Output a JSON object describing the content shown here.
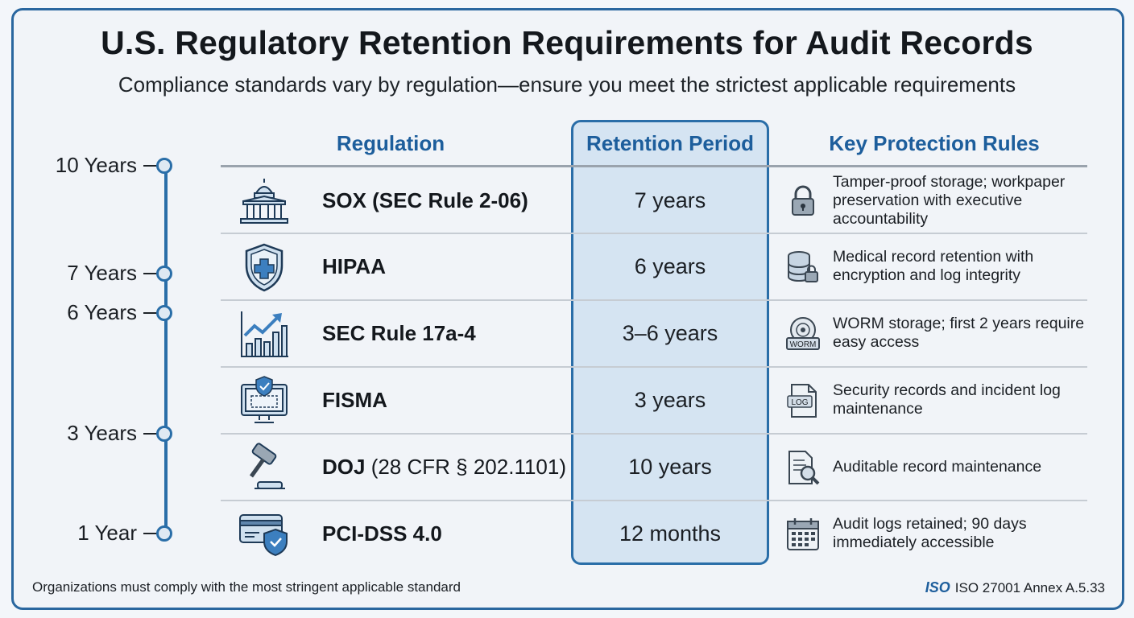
{
  "title": "U.S. Regulatory Retention Requirements for Audit Records",
  "subtitle": "Compliance standards vary by regulation—ensure you meet the strictest applicable requirements",
  "columns": {
    "regulation": "Regulation",
    "retention": "Retention Period",
    "rules": "Key Protection Rules"
  },
  "timeline": [
    {
      "label": "10 Years",
      "years": 10
    },
    {
      "label": "7 Years",
      "years": 7
    },
    {
      "label": "6 Years",
      "years": 6
    },
    {
      "label": "3 Years",
      "years": 3
    },
    {
      "label": "1 Year",
      "years": 1
    }
  ],
  "rows": [
    {
      "name": "SOX (SEC Rule 2-06)",
      "name_extra": "",
      "period": "7 years",
      "rule": "Tamper-proof storage; workpaper preservation with executive accountability",
      "icon": "capitol-building-icon",
      "rule_icon": "padlock-icon"
    },
    {
      "name": "HIPAA",
      "name_extra": "",
      "period": "6 years",
      "rule": "Medical record retention with encryption and log integrity",
      "icon": "medical-shield-icon",
      "rule_icon": "database-lock-icon"
    },
    {
      "name": "SEC Rule 17a-4",
      "name_extra": "",
      "period": "3–6 years",
      "rule": "WORM storage; first 2 years require easy access",
      "icon": "growth-chart-icon",
      "rule_icon": "worm-disk-icon"
    },
    {
      "name": "FISMA",
      "name_extra": "",
      "period": "3 years",
      "rule": "Security records and incident log maintenance",
      "icon": "secure-monitor-icon",
      "rule_icon": "log-file-icon"
    },
    {
      "name": "DOJ",
      "name_extra": " (28 CFR § 202.1101)",
      "period": "10 years",
      "rule": "Auditable record maintenance",
      "icon": "gavel-icon",
      "rule_icon": "document-search-icon"
    },
    {
      "name": "PCI-DSS 4.0",
      "name_extra": "",
      "period": "12 months",
      "rule": "Audit logs retained; 90 days immediately accessible",
      "icon": "credit-card-shield-icon",
      "rule_icon": "calendar-icon"
    }
  ],
  "rule_icon_labels": {
    "worm": "WORM",
    "log": "LOG"
  },
  "footer": {
    "note": "Organizations must comply with the most stringent applicable standard",
    "iso_badge": "ISO",
    "reference": "ISO 27001 Annex A.5.33"
  },
  "colors": {
    "accent": "#2a6ea8",
    "heading": "#1d5e9c",
    "highlight": "#d5e4f2",
    "background": "#f1f4f8"
  }
}
